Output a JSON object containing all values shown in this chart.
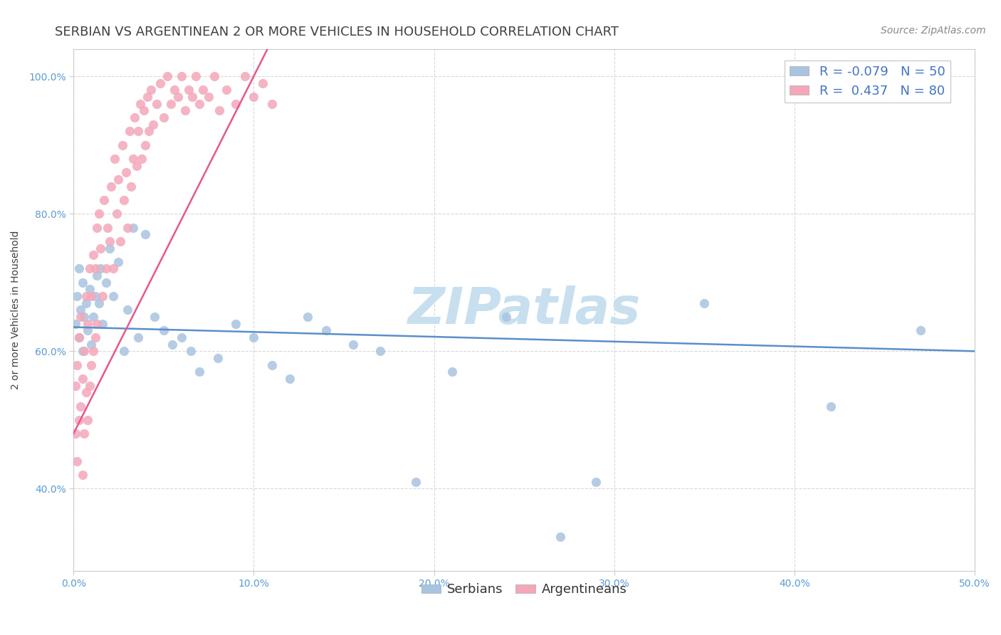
{
  "title": "SERBIAN VS ARGENTINEAN 2 OR MORE VEHICLES IN HOUSEHOLD CORRELATION CHART",
  "source": "Source: ZipAtlas.com",
  "ylabel": "2 or more Vehicles in Household",
  "x_min": 0.0,
  "x_max": 0.5,
  "y_min": 0.28,
  "y_max": 1.04,
  "x_ticks": [
    0.0,
    0.1,
    0.2,
    0.3,
    0.4,
    0.5
  ],
  "x_tick_labels": [
    "0.0%",
    "10.0%",
    "20.0%",
    "30.0%",
    "40.0%",
    "50.0%"
  ],
  "y_ticks": [
    0.4,
    0.6,
    0.8,
    1.0
  ],
  "y_tick_labels": [
    "40.0%",
    "60.0%",
    "80.0%",
    "100.0%"
  ],
  "serbian_R": -0.079,
  "serbian_N": 50,
  "argentinean_R": 0.437,
  "argentinean_N": 80,
  "serbian_color": "#a8c4e0",
  "argentinean_color": "#f4a7b9",
  "serbian_line_color": "#5b8fc9",
  "argentinean_line_color": "#e8568a",
  "watermark": "ZIPatlas",
  "legend_serbian_label": "Serbians",
  "legend_argentinean_label": "Argentineans",
  "serbian_x": [
    0.001,
    0.002,
    0.003,
    0.003,
    0.004,
    0.005,
    0.005,
    0.006,
    0.007,
    0.008,
    0.009,
    0.01,
    0.011,
    0.012,
    0.013,
    0.014,
    0.015,
    0.016,
    0.018,
    0.02,
    0.022,
    0.025,
    0.028,
    0.03,
    0.033,
    0.036,
    0.04,
    0.045,
    0.05,
    0.055,
    0.06,
    0.065,
    0.07,
    0.08,
    0.09,
    0.1,
    0.11,
    0.12,
    0.13,
    0.14,
    0.155,
    0.17,
    0.19,
    0.21,
    0.24,
    0.27,
    0.29,
    0.35,
    0.42,
    0.47
  ],
  "serbian_y": [
    0.64,
    0.68,
    0.62,
    0.72,
    0.66,
    0.6,
    0.7,
    0.65,
    0.67,
    0.63,
    0.69,
    0.61,
    0.65,
    0.68,
    0.71,
    0.67,
    0.72,
    0.64,
    0.7,
    0.75,
    0.68,
    0.73,
    0.6,
    0.66,
    0.78,
    0.62,
    0.77,
    0.65,
    0.63,
    0.61,
    0.62,
    0.6,
    0.57,
    0.59,
    0.64,
    0.62,
    0.58,
    0.56,
    0.65,
    0.63,
    0.61,
    0.6,
    0.41,
    0.57,
    0.65,
    0.33,
    0.41,
    0.67,
    0.52,
    0.63
  ],
  "argentinean_x": [
    0.001,
    0.001,
    0.002,
    0.002,
    0.003,
    0.003,
    0.004,
    0.004,
    0.005,
    0.005,
    0.006,
    0.006,
    0.007,
    0.007,
    0.008,
    0.008,
    0.009,
    0.009,
    0.01,
    0.01,
    0.011,
    0.011,
    0.012,
    0.012,
    0.013,
    0.013,
    0.014,
    0.015,
    0.016,
    0.017,
    0.018,
    0.019,
    0.02,
    0.021,
    0.022,
    0.023,
    0.024,
    0.025,
    0.026,
    0.027,
    0.028,
    0.029,
    0.03,
    0.031,
    0.032,
    0.033,
    0.034,
    0.035,
    0.036,
    0.037,
    0.038,
    0.039,
    0.04,
    0.041,
    0.042,
    0.043,
    0.044,
    0.046,
    0.048,
    0.05,
    0.052,
    0.054,
    0.056,
    0.058,
    0.06,
    0.062,
    0.064,
    0.066,
    0.068,
    0.07,
    0.072,
    0.075,
    0.078,
    0.081,
    0.085,
    0.09,
    0.095,
    0.1,
    0.105,
    0.11
  ],
  "argentinean_y": [
    0.55,
    0.48,
    0.58,
    0.44,
    0.62,
    0.5,
    0.65,
    0.52,
    0.56,
    0.42,
    0.6,
    0.48,
    0.68,
    0.54,
    0.64,
    0.5,
    0.72,
    0.55,
    0.68,
    0.58,
    0.74,
    0.6,
    0.72,
    0.62,
    0.78,
    0.64,
    0.8,
    0.75,
    0.68,
    0.82,
    0.72,
    0.78,
    0.76,
    0.84,
    0.72,
    0.88,
    0.8,
    0.85,
    0.76,
    0.9,
    0.82,
    0.86,
    0.78,
    0.92,
    0.84,
    0.88,
    0.94,
    0.87,
    0.92,
    0.96,
    0.88,
    0.95,
    0.9,
    0.97,
    0.92,
    0.98,
    0.93,
    0.96,
    0.99,
    0.94,
    1.0,
    0.96,
    0.98,
    0.97,
    1.0,
    0.95,
    0.98,
    0.97,
    1.0,
    0.96,
    0.98,
    0.97,
    1.0,
    0.95,
    0.98,
    0.96,
    1.0,
    0.97,
    0.99,
    0.96
  ],
  "background_color": "#ffffff",
  "plot_bg_color": "#ffffff",
  "grid_color": "#d0d0d0",
  "title_color": "#404040",
  "tick_color": "#5b9bd5",
  "watermark_color": "#c8dff0",
  "watermark_fontsize": 52,
  "title_fontsize": 13,
  "axis_label_fontsize": 10,
  "tick_fontsize": 10,
  "legend_fontsize": 13,
  "source_fontsize": 10
}
